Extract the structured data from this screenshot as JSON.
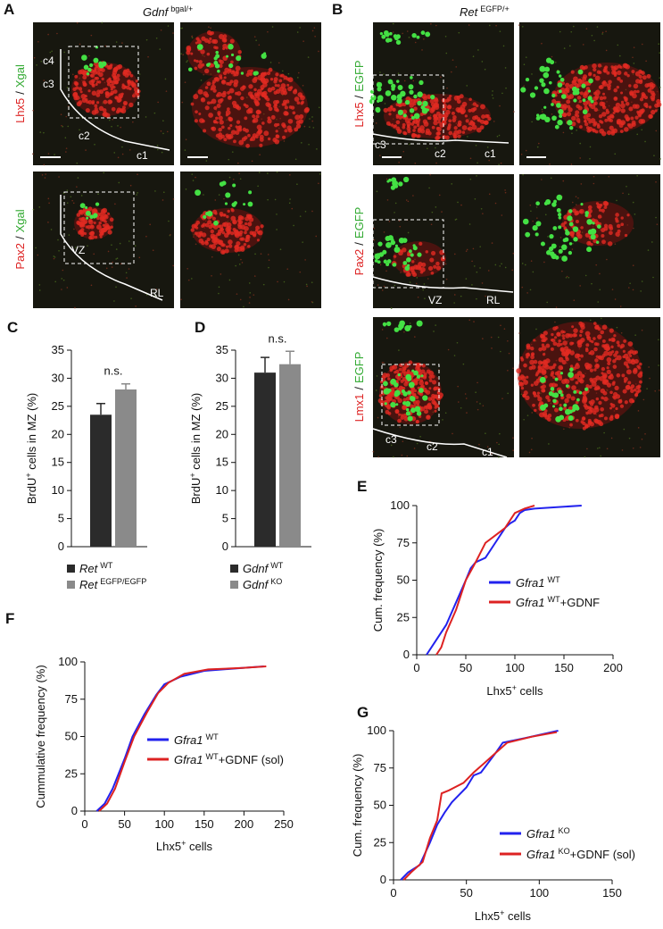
{
  "panels": {
    "A": {
      "label": "A",
      "title": "Gdnf",
      "title_sup": "bgal/+",
      "rows": [
        {
          "marker": "Lhx5",
          "sep": "/",
          "reporter": "Xgal",
          "annotations": [
            "c4",
            "c3",
            "c2",
            "c1"
          ]
        },
        {
          "marker": "Pax2",
          "sep": "/",
          "reporter": "Xgal",
          "annotations": [
            "VZ",
            "RL"
          ]
        }
      ]
    },
    "B": {
      "label": "B",
      "title": "Ret",
      "title_sup": "EGFP/+",
      "rows": [
        {
          "marker": "Lhx5",
          "sep": "/",
          "reporter": "EGFP",
          "annotations": [
            "c3",
            "c2",
            "c1"
          ]
        },
        {
          "marker": "Pax2",
          "sep": "/",
          "reporter": "EGFP",
          "annotations": [
            "VZ",
            "RL"
          ]
        },
        {
          "marker": "Lmx1",
          "sep": "/",
          "reporter": "EGFP",
          "annotations": [
            "c3",
            "c2",
            "c1"
          ]
        }
      ]
    }
  },
  "chart_data": [
    {
      "type": "bar",
      "label": "C",
      "ylabel": {
        "base": "BrdU",
        "sup": "+",
        "rest": " cells in MZ (%)"
      },
      "annotation": "n.s.",
      "ylim": [
        0,
        35
      ],
      "yticks": [
        0,
        5,
        10,
        15,
        20,
        25,
        30,
        35
      ],
      "series": [
        {
          "name": "Ret",
          "name_sup": "WT",
          "color": "#2b2b2b",
          "values": [
            23.5
          ],
          "errors": [
            2
          ]
        },
        {
          "name": "Ret",
          "name_sup": "EGFP/EGFP",
          "color": "#8a8a8a",
          "values": [
            28
          ],
          "errors": [
            1
          ]
        }
      ]
    },
    {
      "type": "bar",
      "label": "D",
      "ylabel": {
        "base": "BrdU",
        "sup": "+",
        "rest": " cells in MZ (%)"
      },
      "annotation": "n.s.",
      "ylim": [
        0,
        35
      ],
      "yticks": [
        0,
        5,
        10,
        15,
        20,
        25,
        30,
        35
      ],
      "series": [
        {
          "name": "Gdnf",
          "name_sup": "WT",
          "color": "#2b2b2b",
          "values": [
            31
          ],
          "errors": [
            2.7
          ]
        },
        {
          "name": "Gdnf",
          "name_sup": "KO",
          "color": "#8a8a8a",
          "values": [
            32.5
          ],
          "errors": [
            2.3
          ]
        }
      ]
    },
    {
      "type": "line",
      "label": "E",
      "ylabel": "Cum. frequency (%)",
      "xlabel": {
        "base": "Lhx5",
        "sup": "+",
        "rest": " cells"
      },
      "xlim": [
        0,
        200
      ],
      "xticks": [
        0,
        50,
        100,
        150,
        200
      ],
      "ylim": [
        0,
        100
      ],
      "yticks": [
        0,
        25,
        50,
        75,
        100
      ],
      "series": [
        {
          "name": "Gfra1",
          "name_sup": "WT",
          "color": "#2222ee",
          "x": [
            10,
            15,
            20,
            30,
            40,
            50,
            55,
            60,
            70,
            80,
            90,
            95,
            100,
            105,
            110,
            120,
            168
          ],
          "values": [
            0,
            5,
            10,
            20,
            35,
            50,
            58,
            62,
            65,
            75,
            85,
            88,
            90,
            95,
            97,
            98,
            100
          ]
        },
        {
          "name": "Gfra1",
          "name_sup": "WT",
          "name_suffix": "+GDNF",
          "color": "#dd2222",
          "x": [
            20,
            25,
            30,
            40,
            50,
            60,
            70,
            80,
            90,
            100,
            110,
            120
          ],
          "values": [
            0,
            5,
            15,
            30,
            50,
            62,
            75,
            80,
            85,
            95,
            98,
            100
          ]
        }
      ]
    },
    {
      "type": "line",
      "label": "F",
      "ylabel": "Cummulative frequency (%)",
      "xlabel": {
        "base": "Lhx5",
        "sup": "+",
        "rest": " cells"
      },
      "xlim": [
        0,
        250
      ],
      "xticks": [
        0,
        50,
        100,
        150,
        200,
        250
      ],
      "ylim": [
        0,
        100
      ],
      "yticks": [
        0,
        25,
        50,
        75,
        100
      ],
      "series": [
        {
          "name": "Gfra1",
          "name_sup": "WT",
          "color": "#2222ee",
          "x": [
            15,
            25,
            35,
            50,
            60,
            75,
            90,
            100,
            120,
            150,
            200,
            225
          ],
          "values": [
            0,
            5,
            15,
            35,
            50,
            65,
            78,
            85,
            90,
            94,
            96,
            97
          ]
        },
        {
          "name": "Gfra1",
          "name_sup": "WT",
          "name_suffix": "+GDNF (sol)",
          "color": "#dd2222",
          "x": [
            18,
            28,
            38,
            50,
            62,
            78,
            92,
            105,
            125,
            155,
            200,
            228
          ],
          "values": [
            0,
            5,
            15,
            33,
            50,
            66,
            79,
            86,
            92,
            95,
            96,
            97
          ]
        }
      ]
    },
    {
      "type": "line",
      "label": "G",
      "ylabel": "Cum. frequency (%)",
      "xlabel": {
        "base": "Lhx5",
        "sup": "+",
        "rest": " cells"
      },
      "xlim": [
        0,
        150
      ],
      "xticks": [
        0,
        50,
        100,
        150
      ],
      "ylim": [
        0,
        100
      ],
      "yticks": [
        0,
        25,
        50,
        75,
        100
      ],
      "series": [
        {
          "name": "Gfra1",
          "name_sup": "KO",
          "color": "#2222ee",
          "x": [
            5,
            10,
            18,
            25,
            30,
            35,
            40,
            50,
            55,
            60,
            70,
            75,
            90,
            113
          ],
          "values": [
            0,
            5,
            10,
            25,
            37,
            45,
            52,
            62,
            70,
            72,
            85,
            92,
            95,
            100
          ]
        },
        {
          "name": "Gfra1",
          "name_sup": "KO",
          "name_suffix": "+GDNF (sol)",
          "color": "#dd2222",
          "x": [
            7,
            12,
            20,
            25,
            30,
            33,
            38,
            48,
            55,
            62,
            70,
            78,
            95,
            112
          ],
          "values": [
            0,
            5,
            12,
            28,
            40,
            58,
            60,
            65,
            72,
            78,
            85,
            92,
            96,
            99
          ]
        }
      ]
    }
  ]
}
